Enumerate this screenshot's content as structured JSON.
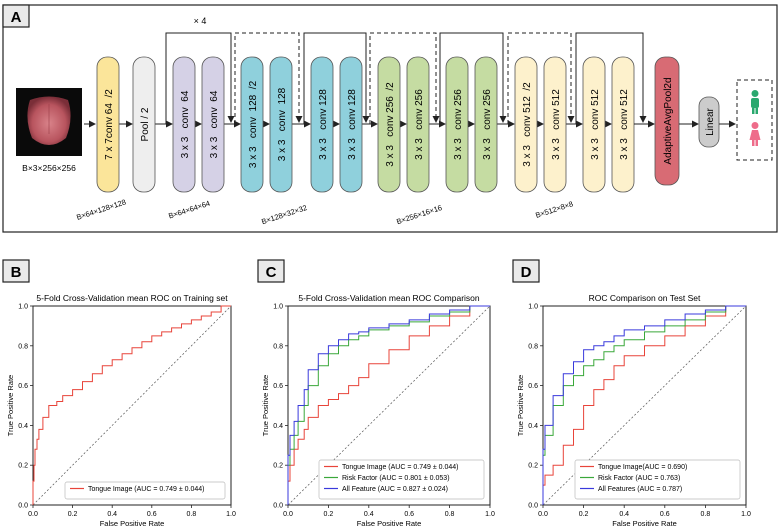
{
  "panel_labels": {
    "a": "A",
    "b": "B",
    "c": "C",
    "d": "D"
  },
  "architecture": {
    "input_label": "B×3×256×256",
    "repeat_label": "× 4",
    "blocks": [
      {
        "text": "7 x 7conv 64  /2",
        "color": "#fbe59a"
      },
      {
        "text": "Pool / 2",
        "color": "#eeeeee"
      },
      {
        "text": "3 x 3   conv  64",
        "color": "#d5d1e6"
      },
      {
        "text": "3 x 3   conv  64",
        "color": "#d5d1e6"
      },
      {
        "text": "3 x 3   conv  128  /2",
        "color": "#8fd0dc"
      },
      {
        "text": "3 x 3   conv  128",
        "color": "#8fd0dc"
      },
      {
        "text": "3 x 3   conv 128",
        "color": "#8fd0dc"
      },
      {
        "text": "3 x 3   conv 128",
        "color": "#8fd0dc"
      },
      {
        "text": "3 x 3   conv 256  /2",
        "color": "#c5dca2"
      },
      {
        "text": "3 x 3   conv 256",
        "color": "#c5dca2"
      },
      {
        "text": "3 x 3   conv 256",
        "color": "#c5dca2"
      },
      {
        "text": "3 x 3   conv 256",
        "color": "#c5dca2"
      },
      {
        "text": "3 x 3   conv 512  /2",
        "color": "#fdf1cc"
      },
      {
        "text": "3 x 3   conv 512",
        "color": "#fdf1cc"
      },
      {
        "text": "3 x 3   conv 512",
        "color": "#fdf1cc"
      },
      {
        "text": "3 x 3   conv 512",
        "color": "#fdf1cc"
      }
    ],
    "pool_label": "AdaptiveAvgPool2d",
    "pool_color": "#d86b74",
    "linear_label": "Linear",
    "linear_color": "#cccccc",
    "dims": [
      "B×64×128×128",
      "B×64×64×64",
      "B×128×32×32",
      "B×256×16×16",
      "B×512×8×8"
    ],
    "output_colors": {
      "male": "#2aa86e",
      "female": "#ee6c8a"
    }
  },
  "chart_data": [
    {
      "type": "line",
      "title": "5-Fold Cross-Validation mean ROC on Training set",
      "xlabel": "False Positive Rate",
      "ylabel": "True Positive Rate",
      "xlim": [
        0,
        1
      ],
      "ylim": [
        0,
        1
      ],
      "xticks": [
        "0.0",
        "0.2",
        "0.4",
        "0.6",
        "0.8",
        "1.0"
      ],
      "yticks": [
        "0.0",
        "0.2",
        "0.4",
        "0.6",
        "0.8",
        "1.0"
      ],
      "legend_position": "bottom-right",
      "series": [
        {
          "name": "Tongue Image (AUC = 0.749 ± 0.044)",
          "color": "#e8443a",
          "x": [
            0,
            0.005,
            0.01,
            0.02,
            0.03,
            0.05,
            0.08,
            0.12,
            0.15,
            0.2,
            0.25,
            0.3,
            0.35,
            0.4,
            0.45,
            0.5,
            0.55,
            0.6,
            0.65,
            0.7,
            0.75,
            0.8,
            0.85,
            0.9,
            0.95,
            1.0
          ],
          "y": [
            0,
            0.12,
            0.2,
            0.28,
            0.33,
            0.38,
            0.44,
            0.5,
            0.52,
            0.55,
            0.58,
            0.62,
            0.66,
            0.7,
            0.73,
            0.76,
            0.79,
            0.82,
            0.85,
            0.87,
            0.89,
            0.91,
            0.93,
            0.95,
            0.97,
            1.0
          ]
        }
      ]
    },
    {
      "type": "line",
      "title": "5-Fold Cross-Validation mean ROC Comparison",
      "xlabel": "False Positive Rate",
      "ylabel": "True Positive Rate",
      "xlim": [
        0,
        1
      ],
      "ylim": [
        0,
        1
      ],
      "xticks": [
        "0.0",
        "0.2",
        "0.4",
        "0.6",
        "0.8",
        "1.0"
      ],
      "yticks": [
        "0.0",
        "0.2",
        "0.4",
        "0.6",
        "0.8",
        "1.0"
      ],
      "legend_position": "bottom-right",
      "series": [
        {
          "name": "Tongue Image (AUC = 0.749 ± 0.044)",
          "color": "#e8443a",
          "x": [
            0,
            0.01,
            0.03,
            0.05,
            0.08,
            0.1,
            0.15,
            0.2,
            0.25,
            0.3,
            0.35,
            0.4,
            0.5,
            0.6,
            0.7,
            0.8,
            0.9,
            1.0
          ],
          "y": [
            0,
            0.12,
            0.2,
            0.28,
            0.33,
            0.38,
            0.44,
            0.5,
            0.53,
            0.56,
            0.6,
            0.64,
            0.71,
            0.78,
            0.85,
            0.9,
            0.95,
            1.0
          ]
        },
        {
          "name": "Risk Factor (AUC = 0.801 ± 0.053)",
          "color": "#3aa83a",
          "x": [
            0,
            0.01,
            0.03,
            0.05,
            0.08,
            0.1,
            0.15,
            0.2,
            0.25,
            0.3,
            0.35,
            0.4,
            0.5,
            0.6,
            0.7,
            0.8,
            0.9,
            1.0
          ],
          "y": [
            0,
            0.2,
            0.28,
            0.35,
            0.42,
            0.5,
            0.6,
            0.7,
            0.76,
            0.8,
            0.83,
            0.85,
            0.88,
            0.9,
            0.92,
            0.95,
            0.97,
            1.0
          ]
        },
        {
          "name": "All Feature (AUC = 0.827 ± 0.024)",
          "color": "#3a3adc",
          "x": [
            0,
            0.01,
            0.03,
            0.05,
            0.08,
            0.1,
            0.15,
            0.2,
            0.25,
            0.3,
            0.35,
            0.4,
            0.5,
            0.6,
            0.7,
            0.8,
            0.9,
            1.0
          ],
          "y": [
            0,
            0.25,
            0.35,
            0.42,
            0.5,
            0.58,
            0.68,
            0.76,
            0.8,
            0.83,
            0.86,
            0.87,
            0.89,
            0.91,
            0.93,
            0.96,
            0.98,
            1.0
          ]
        }
      ]
    },
    {
      "type": "line",
      "title": "ROC Comparison on Test Set",
      "xlabel": "False Positive Rate",
      "ylabel": "True Positive Rate",
      "xlim": [
        0,
        1
      ],
      "ylim": [
        0,
        1
      ],
      "xticks": [
        "0.0",
        "0.2",
        "0.4",
        "0.6",
        "0.8",
        "1.0"
      ],
      "yticks": [
        "0.0",
        "0.2",
        "0.4",
        "0.6",
        "0.8",
        "1.0"
      ],
      "legend_position": "bottom-right",
      "series": [
        {
          "name": "Tongue Image(AUC = 0.690)",
          "color": "#e8443a",
          "x": [
            0,
            0.01,
            0.05,
            0.1,
            0.15,
            0.2,
            0.25,
            0.3,
            0.35,
            0.4,
            0.5,
            0.6,
            0.7,
            0.8,
            0.9,
            1.0
          ],
          "y": [
            0,
            0.1,
            0.15,
            0.2,
            0.3,
            0.38,
            0.5,
            0.58,
            0.63,
            0.7,
            0.75,
            0.8,
            0.85,
            0.9,
            0.95,
            1.0
          ]
        },
        {
          "name": "Risk Factor (AUC = 0.763)",
          "color": "#3aa83a",
          "x": [
            0,
            0.01,
            0.05,
            0.1,
            0.15,
            0.2,
            0.25,
            0.3,
            0.35,
            0.4,
            0.5,
            0.6,
            0.7,
            0.8,
            0.9,
            1.0
          ],
          "y": [
            0,
            0.25,
            0.35,
            0.5,
            0.6,
            0.65,
            0.7,
            0.73,
            0.77,
            0.8,
            0.83,
            0.87,
            0.9,
            0.93,
            0.97,
            1.0
          ]
        },
        {
          "name": "All Features (AUC = 0.787)",
          "color": "#3a3adc",
          "x": [
            0,
            0.01,
            0.05,
            0.1,
            0.15,
            0.2,
            0.25,
            0.3,
            0.35,
            0.4,
            0.5,
            0.6,
            0.7,
            0.8,
            0.9,
            1.0
          ],
          "y": [
            0,
            0.28,
            0.4,
            0.55,
            0.66,
            0.72,
            0.78,
            0.8,
            0.82,
            0.85,
            0.88,
            0.9,
            0.93,
            0.96,
            0.98,
            1.0
          ]
        }
      ]
    }
  ]
}
